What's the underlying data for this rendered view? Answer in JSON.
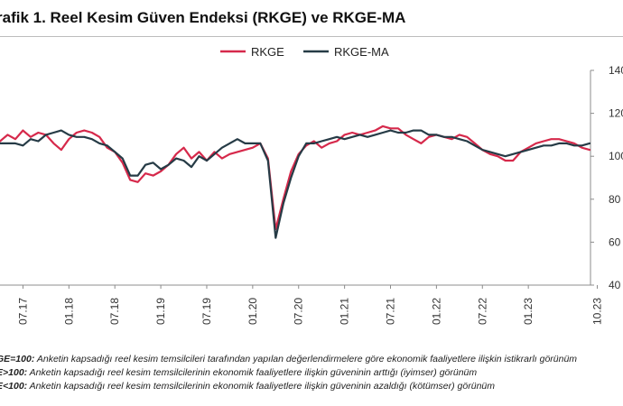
{
  "page_title": "rafik 1. Reel Kesim Güven Endeksi (RKGE) ve RKGE-MA",
  "notes": [
    {
      "label": "GE=100:",
      "text": " Anketin kapsadığı reel kesim temsilcileri tarafından yapılan değerlendirmelere göre ekonomik faaliyetlere ilişkin istikrarlı görünüm"
    },
    {
      "label": "E>100:",
      "text": " Anketin kapsadığı reel kesim temsilcilerinin ekonomik faaliyetlere ilişkin güveninin arttığı (iyimser) görünüm"
    },
    {
      "label": "E<100:",
      "text": " Anketin kapsadığı reel kesim temsilcilerinin ekonomik faaliyetlere ilişkin güveninin azaldığı (kötümser) görünüm"
    }
  ],
  "chart_data": {
    "type": "line",
    "title": "rafik 1. Reel Kesim Güven Endeksi (RKGE) ve RKGE-MA",
    "xlabel": "",
    "ylabel": "",
    "ylim": [
      40,
      140
    ],
    "yticks": [
      "40",
      "60",
      "80",
      "100",
      "120",
      "140"
    ],
    "grid": false,
    "legend_position": "top-center",
    "x_tick_labels": [
      {
        "index": 3,
        "label": "07.17"
      },
      {
        "index": 9,
        "label": "01.18"
      },
      {
        "index": 15,
        "label": "07.18"
      },
      {
        "index": 21,
        "label": "01.19"
      },
      {
        "index": 27,
        "label": "07.19"
      },
      {
        "index": 33,
        "label": "01.20"
      },
      {
        "index": 39,
        "label": "07.20"
      },
      {
        "index": 45,
        "label": "01.21"
      },
      {
        "index": 51,
        "label": "07.21"
      },
      {
        "index": 57,
        "label": "01.22"
      },
      {
        "index": 63,
        "label": "07.22"
      },
      {
        "index": 69,
        "label": "01.23"
      },
      {
        "index": 78,
        "label": "10.23"
      }
    ],
    "series": [
      {
        "name": "RKGE",
        "color": "#d6294b",
        "values": [
          107,
          110,
          108,
          112,
          109,
          111,
          110,
          106,
          103,
          108,
          111,
          112,
          111,
          109,
          104,
          102,
          97,
          89,
          88,
          92,
          91,
          93,
          96,
          101,
          104,
          99,
          102,
          98,
          102,
          99,
          101,
          102,
          103,
          104,
          106,
          99,
          66,
          80,
          93,
          101,
          105,
          107,
          104,
          106,
          107,
          110,
          111,
          110,
          111,
          112,
          114,
          113,
          113,
          110,
          108,
          106,
          109,
          110,
          109,
          108,
          110,
          109,
          106,
          103,
          101,
          100,
          98,
          98,
          102,
          104,
          106,
          107,
          108,
          108,
          107,
          106,
          104,
          103
        ]
      },
      {
        "name": "RKGE-MA",
        "color": "#263b46",
        "values": [
          106,
          106,
          106,
          105,
          108,
          107,
          110,
          111,
          112,
          110,
          109,
          109,
          108,
          106,
          105,
          102,
          99,
          91,
          91,
          96,
          97,
          94,
          96,
          99,
          98,
          95,
          100,
          98,
          101,
          104,
          106,
          108,
          106,
          106,
          106,
          98,
          62,
          78,
          90,
          100,
          106,
          106,
          107,
          108,
          109,
          108,
          109,
          110,
          109,
          110,
          111,
          112,
          111,
          111,
          112,
          112,
          110,
          110,
          109,
          109,
          108,
          107,
          105,
          103,
          102,
          101,
          100,
          101,
          102,
          103,
          104,
          105,
          105,
          106,
          106,
          105,
          105,
          106
        ]
      }
    ]
  }
}
